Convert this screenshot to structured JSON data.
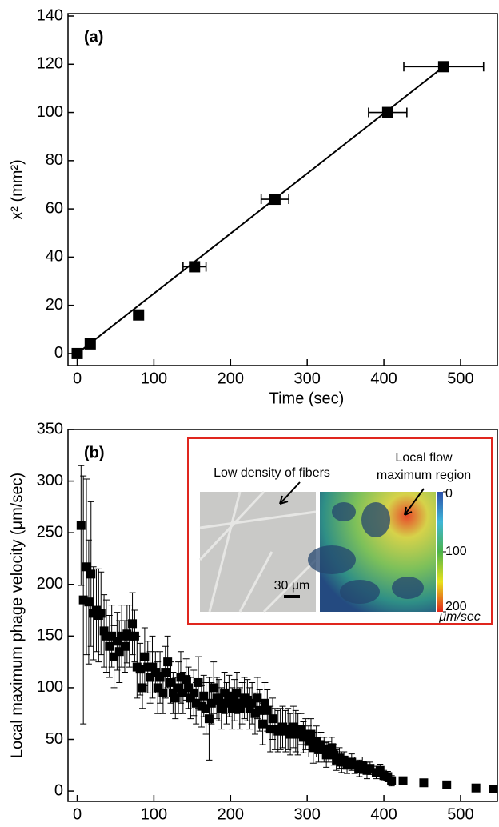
{
  "chart_data": [
    {
      "type": "scatter",
      "panel_label": "(a)",
      "x_label": "Time (sec)",
      "y_label": "x² (mm²)",
      "color": "#000000",
      "x": [
        0,
        17,
        80,
        153,
        258,
        405,
        478
      ],
      "values": [
        0,
        4,
        16,
        36,
        64,
        100,
        119
      ],
      "x_errors": [
        3,
        3,
        5,
        15,
        18,
        25,
        52
      ],
      "fit": {
        "x": [
          0,
          480
        ],
        "y": [
          0,
          119.5
        ]
      },
      "xlim": [
        -12,
        548
      ],
      "ylim": [
        -5,
        141
      ],
      "xticks": [
        0,
        100,
        200,
        300,
        400,
        500
      ],
      "yticks": [
        0,
        20,
        40,
        60,
        80,
        100,
        120,
        140
      ]
    },
    {
      "type": "scatter",
      "panel_label": "(b)",
      "x_label": "Time (sec)",
      "y_label": "Local maximum phage velocity (μm/sec)",
      "color": "#000000",
      "x": [
        5,
        8,
        12,
        15,
        18,
        21,
        25,
        28,
        31,
        35,
        38,
        42,
        45,
        48,
        52,
        55,
        58,
        62,
        65,
        68,
        72,
        75,
        78,
        82,
        85,
        88,
        92,
        95,
        98,
        102,
        105,
        108,
        112,
        115,
        118,
        122,
        125,
        128,
        132,
        135,
        138,
        142,
        145,
        148,
        152,
        155,
        158,
        162,
        165,
        168,
        172,
        175,
        178,
        182,
        185,
        188,
        192,
        195,
        198,
        202,
        205,
        208,
        212,
        215,
        218,
        222,
        225,
        228,
        232,
        235,
        238,
        242,
        245,
        248,
        252,
        255,
        258,
        262,
        265,
        268,
        272,
        275,
        278,
        282,
        285,
        288,
        292,
        295,
        298,
        302,
        305,
        308,
        312,
        315,
        318,
        322,
        325,
        328,
        332,
        335,
        338,
        342,
        345,
        348,
        352,
        358,
        362,
        368,
        372,
        378,
        382,
        390,
        395,
        400,
        405,
        410,
        425,
        452,
        482,
        520,
        543
      ],
      "values": [
        257,
        185,
        217,
        183,
        210,
        172,
        175,
        170,
        172,
        155,
        150,
        140,
        150,
        130,
        145,
        135,
        150,
        140,
        152,
        150,
        162,
        150,
        120,
        118,
        100,
        130,
        120,
        110,
        120,
        115,
        100,
        110,
        95,
        115,
        125,
        105,
        95,
        90,
        100,
        110,
        95,
        108,
        100,
        90,
        95,
        85,
        105,
        82,
        92,
        80,
        70,
        85,
        100,
        90,
        88,
        80,
        95,
        85,
        92,
        80,
        88,
        95,
        80,
        85,
        90,
        88,
        80,
        85,
        75,
        90,
        78,
        65,
        85,
        78,
        60,
        70,
        60,
        58,
        60,
        62,
        58,
        60,
        55,
        62,
        58,
        55,
        60,
        52,
        55,
        48,
        55,
        42,
        48,
        40,
        45,
        40,
        35,
        38,
        42,
        35,
        30,
        32,
        28,
        30,
        25,
        28,
        25,
        22,
        25,
        20,
        22,
        18,
        20,
        15,
        14,
        10,
        10,
        8,
        6,
        3,
        2
      ],
      "y_errors": [
        58,
        120,
        85,
        60,
        70,
        45,
        40,
        45,
        40,
        35,
        35,
        30,
        30,
        30,
        28,
        30,
        30,
        25,
        28,
        30,
        30,
        25,
        30,
        25,
        20,
        28,
        25,
        25,
        30,
        20,
        25,
        25,
        20,
        25,
        25,
        20,
        20,
        20,
        25,
        25,
        20,
        20,
        20,
        20,
        22,
        20,
        25,
        20,
        20,
        25,
        40,
        20,
        25,
        20,
        20,
        20,
        20,
        20,
        20,
        20,
        20,
        20,
        20,
        20,
        20,
        20,
        20,
        20,
        20,
        20,
        20,
        20,
        20,
        20,
        22,
        20,
        20,
        20,
        20,
        20,
        20,
        20,
        20,
        20,
        20,
        20,
        15,
        15,
        15,
        15,
        15,
        15,
        15,
        12,
        12,
        12,
        12,
        10,
        10,
        10,
        10,
        10,
        10,
        8,
        8,
        8,
        8,
        8,
        8,
        8,
        6,
        6,
        6,
        5,
        5,
        5,
        0,
        0,
        0,
        0,
        0
      ],
      "xlim": [
        -12,
        548
      ],
      "ylim": [
        -10,
        350
      ],
      "xticks": [
        0,
        100,
        200,
        300,
        400,
        500
      ],
      "yticks": [
        0,
        50,
        100,
        150,
        200,
        250,
        300,
        350
      ],
      "inset": {
        "left_label": "Low density of fibers",
        "right_label": [
          "Local flow",
          "maximum region"
        ],
        "scale_bar": "30 μm",
        "colorbar_lim": [
          0,
          200
        ],
        "colorbar_ticks": [
          0,
          100,
          200
        ],
        "colorbar_unit": "μm/sec",
        "border_color": "#e0261e"
      }
    }
  ]
}
